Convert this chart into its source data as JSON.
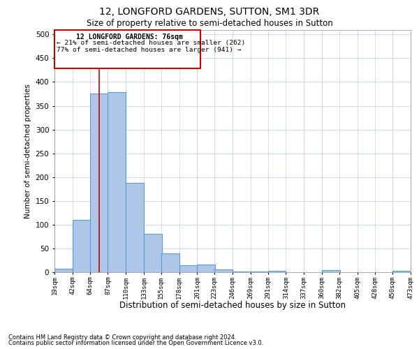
{
  "title1": "12, LONGFORD GARDENS, SUTTON, SM1 3DR",
  "title2": "Size of property relative to semi-detached houses in Sutton",
  "xlabel": "Distribution of semi-detached houses by size in Sutton",
  "ylabel": "Number of semi-detached properties",
  "footer1": "Contains HM Land Registry data © Crown copyright and database right 2024.",
  "footer2": "Contains public sector information licensed under the Open Government Licence v3.0.",
  "annotation_title": "12 LONGFORD GARDENS: 76sqm",
  "annotation_line1": "← 21% of semi-detached houses are smaller (262)",
  "annotation_line2": "77% of semi-detached houses are larger (941) →",
  "property_size": 76,
  "bar_left_edges": [
    19,
    42,
    64,
    87,
    110,
    133,
    155,
    178,
    201,
    223,
    246,
    269,
    291,
    314,
    337,
    360,
    382,
    405,
    428,
    450
  ],
  "bar_heights": [
    7,
    110,
    375,
    378,
    188,
    81,
    40,
    15,
    16,
    6,
    1,
    1,
    3,
    0,
    0,
    5,
    0,
    0,
    0,
    3
  ],
  "bin_width": 23,
  "bar_color": "#aec6e8",
  "bar_edge_color": "#5b9bd5",
  "red_line_color": "#cc0000",
  "annotation_box_color": "#cc0000",
  "grid_color": "#c8d4e8",
  "background_color": "#ffffff",
  "ylim": [
    0,
    510
  ],
  "yticks": [
    0,
    50,
    100,
    150,
    200,
    250,
    300,
    350,
    400,
    450,
    500
  ],
  "x_labels": [
    "19sqm",
    "42sqm",
    "64sqm",
    "87sqm",
    "110sqm",
    "133sqm",
    "155sqm",
    "178sqm",
    "201sqm",
    "223sqm",
    "246sqm",
    "269sqm",
    "291sqm",
    "314sqm",
    "337sqm",
    "360sqm",
    "382sqm",
    "405sqm",
    "428sqm",
    "450sqm",
    "473sqm"
  ]
}
